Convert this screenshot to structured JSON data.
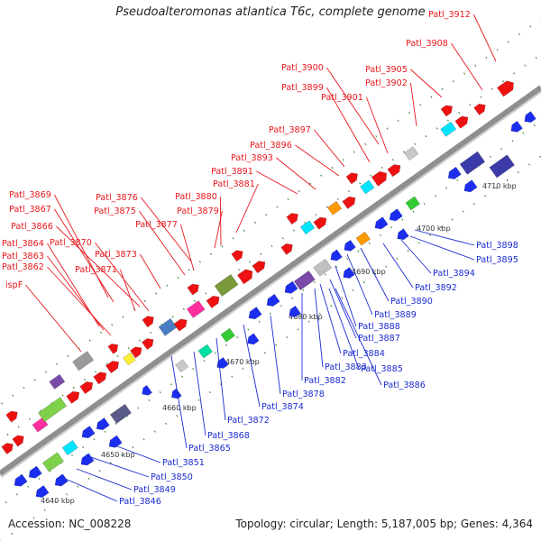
{
  "title": "Pseudoalteromonas atlantica T6c, complete genome",
  "footer": {
    "accession": "Accession: NC_008228",
    "summary": "Topology: circular; Length: 5,187,005 bp; Genes: 4,364"
  },
  "colors": {
    "forward_labels": "#e8171d",
    "reverse_labels": "#1a2bd0",
    "backbone": "#8f8f8f",
    "tick_marks": "#2e7d2e"
  },
  "kbp_ticks": [
    "4640 kbp",
    "4650 kbp",
    "4660 kbp",
    "4670 kbp",
    "4680 kbp",
    "4690 kbp",
    "4700 kbp",
    "4710 kbp"
  ],
  "forward_strand_labels": [
    "Patl_3912",
    "Patl_3908",
    "Patl_3905",
    "Patl_3902",
    "Patl_3900",
    "Patl_3901",
    "Patl_3899",
    "Patl_3897",
    "Patl_3896",
    "Patl_3893",
    "Patl_3891",
    "Patl_3881",
    "Patl_3880",
    "Patl_3879",
    "Patl_3876",
    "Patl_3875",
    "Patl_3877",
    "Patl_3869",
    "Patl_3867",
    "Patl_3866",
    "Patl_3870",
    "Patl_3873",
    "Patl_3864",
    "Patl_3863",
    "Patl_3871",
    "Patl_3862",
    "ispF"
  ],
  "reverse_strand_labels": [
    "Patl_3898",
    "Patl_3895",
    "Patl_3894",
    "Patl_3892",
    "Patl_3890",
    "Patl_3889",
    "Patl_3888",
    "Patl_3887",
    "Patl_3884",
    "Patl_3883",
    "Patl_3885",
    "Patl_3882",
    "Patl_3886",
    "Patl_3878",
    "Patl_3874",
    "Patl_3872",
    "Patl_3868",
    "Patl_3865",
    "Patl_3851",
    "Patl_3850",
    "Patl_3849",
    "Patl_3846"
  ]
}
